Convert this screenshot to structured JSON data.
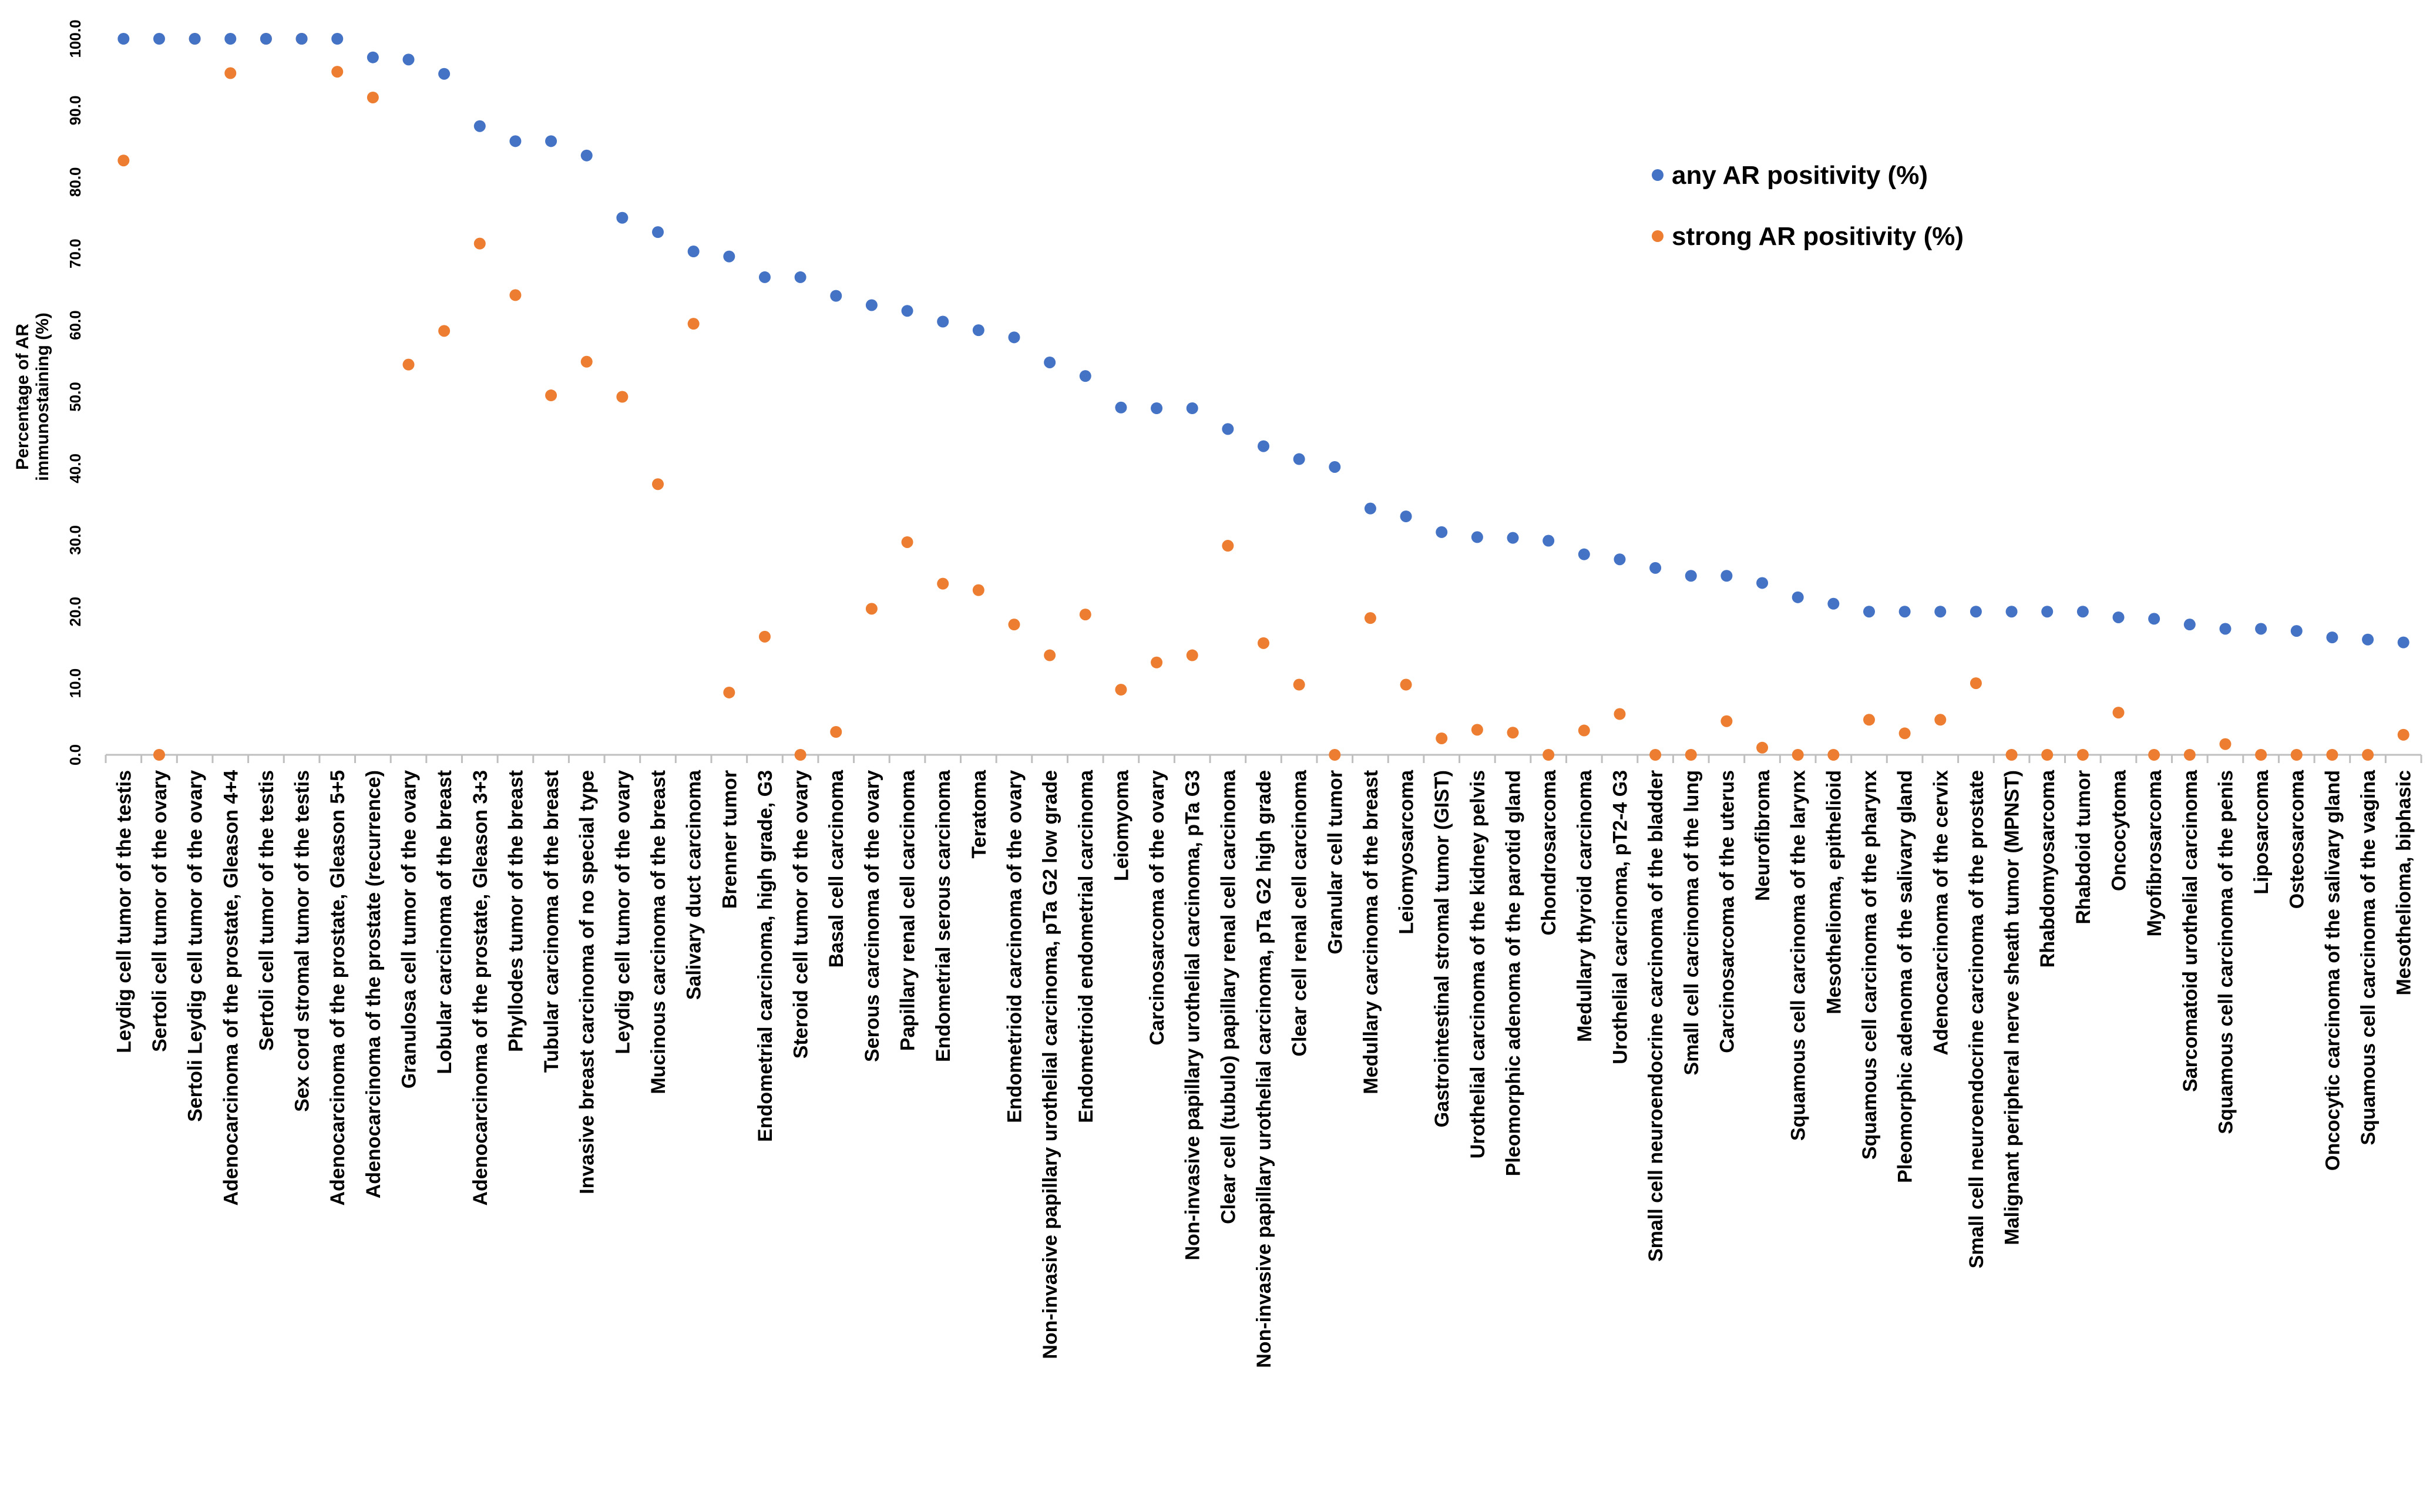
{
  "chart_data": {
    "type": "scatter",
    "title": "",
    "xlabel": "",
    "ylabel": "Percentage of AR immunostaining (%)",
    "ylabel_lines": [
      "Percentage of AR",
      "immunostaining (%)"
    ],
    "ylim": [
      0,
      100
    ],
    "yticks": [
      "0.0",
      "10.0",
      "20.0",
      "30.0",
      "40.0",
      "50.0",
      "60.0",
      "70.0",
      "80.0",
      "90.0",
      "100.0"
    ],
    "legend_position": "top-right",
    "categories": [
      "Leydig cell tumor of the testis",
      "Sertoli cell tumor of the ovary",
      "Sertoli Leydig cell tumor of the ovary",
      "Adenocarcinoma of the prostate, Gleason 4+4",
      "Sertoli cell tumor of the testis",
      "Sex cord stromal tumor of the testis",
      "Adenocarcinoma of the prostate, Gleason 5+5",
      "Adenocarcinoma of the prostate (recurrence)",
      "Granulosa cell tumor of the ovary",
      "Lobular carcinoma of the breast",
      "Adenocarcinoma of the prostate, Gleason 3+3",
      "Phyllodes tumor of the breast",
      "Tubular carcinoma of the breast",
      "Invasive breast carcinoma of no special type",
      "Leydig cell tumor of the ovary",
      "Mucinous carcinoma of the breast",
      "Salivary duct carcinoma",
      "Brenner tumor",
      "Endometrial carcinoma, high grade, G3",
      "Steroid cell tumor of the ovary",
      "Basal cell carcinoma",
      "Serous carcinoma of the ovary",
      "Papillary renal cell carcinoma",
      "Endometrial serous carcinoma",
      "Teratoma",
      "Endometrioid carcinoma of the ovary",
      "Non-invasive papillary urothelial carcinoma, pTa G2 low grade",
      "Endometrioid endometrial carcinoma",
      "Leiomyoma",
      "Carcinosarcoma of the ovary",
      "Non-invasive papillary urothelial carcinoma, pTa G3",
      "Clear cell (tubulo) papillary renal cell carcinoma",
      "Non-invasive papillary urothelial carcinoma, pTa G2 high grade",
      "Clear cell renal cell carcinoma",
      "Granular cell tumor",
      "Medullary carcinoma of the breast",
      "Leiomyosarcoma",
      "Gastrointestinal stromal tumor (GIST)",
      "Urothelial carcinoma of the kidney pelvis",
      "Pleomorphic adenoma of the parotid gland",
      "Chondrosarcoma",
      "Medullary thyroid carcinoma",
      "Urothelial carcinoma, pT2-4 G3",
      "Small cell neuroendocrine carcinoma of the bladder",
      "Small cell carcinoma of the lung",
      "Carcinosarcoma of the uterus",
      "Neurofibroma",
      "Squamous cell carcinoma of the larynx",
      "Mesothelioma, epithelioid",
      "Squamous cell carcinoma of the pharynx",
      "Pleomorphic adenoma of the salivary gland",
      "Adenocarcinoma of the cervix",
      "Small cell neuroendocrine carcinoma of the prostate",
      "Malignant peripheral nerve sheath tumor (MPNST)",
      "Rhabdomyosarcoma",
      "Rhabdoid tumor",
      "Oncocytoma",
      "Myofibrosarcoma",
      "Sarcomatoid urothelial carcinoma",
      "Squamous cell carcinoma of the penis",
      "Liposarcoma",
      "Osteosarcoma",
      "Oncocytic carcinoma of the salivary gland",
      "Squamous cell carcinoma of the vagina",
      "Mesothelioma, biphasic"
    ],
    "series": [
      {
        "name": "any AR positivity (%)",
        "color": "#4472C4",
        "values": [
          100,
          100,
          100,
          100,
          100,
          100,
          100,
          97.4,
          97.1,
          95.1,
          87.8,
          85.7,
          85.7,
          83.7,
          75.0,
          73.0,
          70.3,
          69.6,
          66.7,
          66.7,
          64.1,
          62.8,
          62.0,
          60.5,
          59.3,
          58.3,
          54.8,
          52.9,
          48.5,
          48.4,
          48.4,
          45.5,
          43.1,
          41.3,
          40.2,
          34.4,
          33.3,
          31.1,
          30.4,
          30.3,
          29.9,
          28.0,
          27.3,
          26.1,
          25.0,
          25.0,
          24.0,
          22.0,
          21.1,
          20.0,
          20.0,
          20.0,
          20.0,
          20.0,
          20.0,
          20.0,
          19.2,
          19.0,
          18.2,
          17.6,
          17.6,
          17.3,
          16.4,
          16.1,
          15.7
        ]
      },
      {
        "name": "strong AR positivity (%)",
        "color": "#ED7D31",
        "values": [
          83.0,
          0,
          100,
          95.2,
          100,
          100,
          95.4,
          91.8,
          54.5,
          59.2,
          71.4,
          64.2,
          50.2,
          54.9,
          50.0,
          37.8,
          60.2,
          8.7,
          16.5,
          0,
          3.2,
          20.4,
          29.7,
          23.9,
          23.0,
          18.2,
          13.9,
          19.6,
          9.1,
          12.9,
          13.9,
          29.2,
          15.6,
          9.8,
          0,
          19.1,
          9.8,
          2.3,
          3.5,
          3.1,
          0,
          3.4,
          5.7,
          0,
          0,
          4.7,
          1.0,
          0,
          0,
          4.9,
          3.0,
          4.9,
          10.0,
          0,
          0,
          0,
          5.9,
          0,
          0,
          1.5,
          0,
          0,
          0,
          0,
          2.8
        ]
      }
    ]
  }
}
